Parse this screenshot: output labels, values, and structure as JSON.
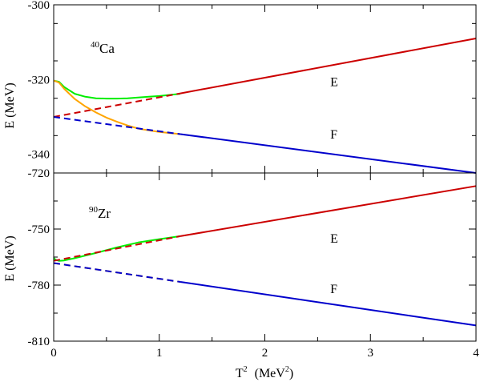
{
  "chart_data": [
    {
      "type": "line",
      "panel": "top",
      "nucleus_mass": "40",
      "nucleus_symbol": "Ca",
      "ylabel": "E  (MeV)",
      "xlim": [
        0,
        4
      ],
      "ylim": [
        -345,
        -300
      ],
      "yticks": [
        -300,
        -320,
        -340
      ],
      "ytick_labels": [
        "-300",
        "-320",
        "-340"
      ],
      "series": [
        {
          "name": "E",
          "color": "#00ee00",
          "style": "solid",
          "x": [
            0,
            0.05,
            0.1,
            0.2,
            0.3,
            0.4,
            0.5,
            0.6,
            0.7,
            0.8,
            0.9,
            1.0,
            1.1,
            1.2
          ],
          "y": [
            -320.3,
            -320.6,
            -322.0,
            -323.8,
            -324.6,
            -325.0,
            -325.1,
            -325.1,
            -325.0,
            -324.8,
            -324.6,
            -324.4,
            -324.1,
            -323.8
          ]
        },
        {
          "name": "E",
          "color": "#cc0000",
          "style": "dashed",
          "x": [
            0,
            1.2
          ],
          "y": [
            -330.0,
            -323.7
          ]
        },
        {
          "name": "E",
          "color": "#cc0000",
          "style": "solid",
          "x": [
            1.2,
            4.0
          ],
          "y": [
            -323.7,
            -309.0
          ]
        },
        {
          "name": "F",
          "color": "#ffa500",
          "style": "solid",
          "x": [
            0,
            0.05,
            0.1,
            0.2,
            0.3,
            0.4,
            0.5,
            0.6,
            0.7,
            0.8,
            0.9,
            1.0,
            1.1,
            1.2
          ],
          "y": [
            -320.3,
            -320.8,
            -322.5,
            -325.2,
            -327.2,
            -328.8,
            -330.2,
            -331.3,
            -332.3,
            -333.1,
            -333.6,
            -334.0,
            -334.3,
            -334.6
          ]
        },
        {
          "name": "F",
          "color": "#0000cc",
          "style": "dashed",
          "x": [
            0,
            1.2
          ],
          "y": [
            -330.0,
            -334.6
          ]
        },
        {
          "name": "F",
          "color": "#0000cc",
          "style": "solid",
          "x": [
            1.2,
            4.0
          ],
          "y": [
            -334.6,
            -345.0
          ]
        }
      ],
      "annotations": [
        {
          "text": "E",
          "x": 2.62,
          "y": -321.7
        },
        {
          "text": "F",
          "x": 2.62,
          "y": -335.8
        }
      ]
    },
    {
      "type": "line",
      "panel": "bottom",
      "nucleus_mass": "90",
      "nucleus_symbol": "Zr",
      "ylabel": "E  (MeV)",
      "xlabel_main": "T",
      "xlabel_sup": "2",
      "xlabel_unit": "(MeV",
      "xlabel_unit_sup": "2",
      "xlabel_close": ")",
      "xlim": [
        0,
        4
      ],
      "ylim": [
        -810,
        -720
      ],
      "xticks": [
        0,
        1,
        2,
        3,
        4
      ],
      "xtick_labels": [
        "0",
        "1",
        "2",
        "3",
        "4"
      ],
      "yticks": [
        -720,
        -750,
        -780,
        -810
      ],
      "ytick_labels": [
        "-720",
        "-750",
        "-780",
        "-810"
      ],
      "series": [
        {
          "name": "E",
          "color": "#00ee00",
          "style": "solid",
          "x": [
            0,
            0.02,
            0.05,
            0.1,
            0.2,
            0.4,
            0.6,
            0.8,
            1.0,
            1.2
          ],
          "y": [
            -765.5,
            -766.5,
            -767.0,
            -766.8,
            -765.6,
            -762.8,
            -759.8,
            -757.2,
            -755.4,
            -753.8
          ]
        },
        {
          "name": "E",
          "color": "#cc0000",
          "style": "dashed",
          "x": [
            0,
            1.2
          ],
          "y": [
            -767.0,
            -753.8
          ]
        },
        {
          "name": "E",
          "color": "#cc0000",
          "style": "solid",
          "x": [
            1.2,
            4.0
          ],
          "y": [
            -753.8,
            -727.0
          ]
        },
        {
          "name": "F",
          "color": "#ffa500",
          "style": "dashed",
          "x": [
            0,
            1.2
          ],
          "y": [
            -768.2,
            -778.3
          ]
        },
        {
          "name": "F",
          "color": "#0000cc",
          "style": "dashed",
          "x": [
            0,
            1.2
          ],
          "y": [
            -768.2,
            -778.3
          ]
        },
        {
          "name": "F",
          "color": "#0000cc",
          "style": "solid",
          "x": [
            1.2,
            4.0
          ],
          "y": [
            -778.3,
            -801.6
          ]
        }
      ],
      "annotations": [
        {
          "text": "E",
          "x": 2.62,
          "y": -757.3
        },
        {
          "text": "F",
          "x": 2.62,
          "y": -784.2
        }
      ]
    }
  ]
}
